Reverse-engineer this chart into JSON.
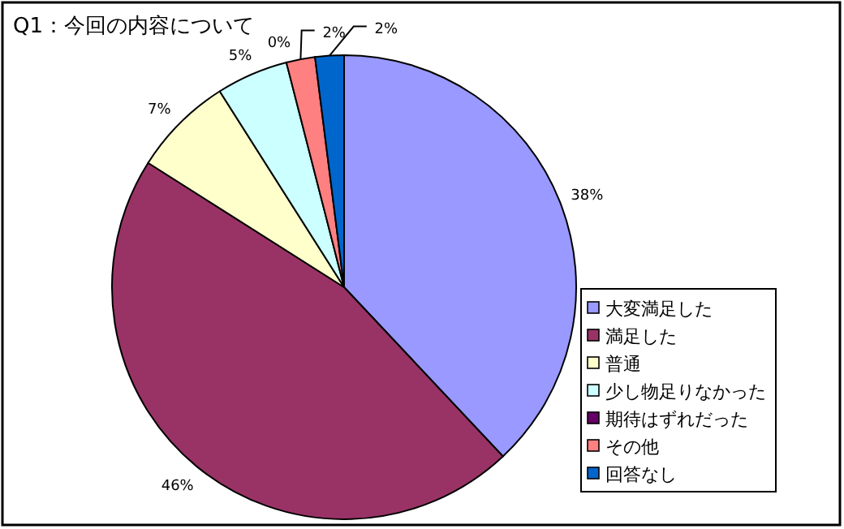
{
  "chart_data": {
    "type": "pie",
    "title": "Q1：今回の内容について",
    "categories": [
      "大変満足した",
      "満足した",
      "普通",
      "少し物足りなかった",
      "期待はずれだった",
      "その他",
      "回答なし"
    ],
    "values": [
      38,
      46,
      7,
      5,
      0,
      2,
      2
    ],
    "colors": [
      "#9999ff",
      "#993366",
      "#ffffcc",
      "#ccffff",
      "#660066",
      "#ff8080",
      "#0066cc"
    ],
    "value_labels": [
      "38%",
      "46%",
      "7%",
      "5%",
      "0%",
      "2%",
      "2%"
    ],
    "legend": "right"
  }
}
